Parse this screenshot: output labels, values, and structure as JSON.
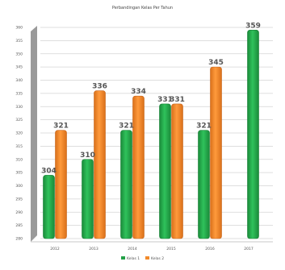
{
  "chart_data": {
    "type": "bar",
    "title": "Perbandingan Kelas Per Tahun",
    "categories": [
      "2012",
      "2013",
      "2014",
      "2015",
      "2016",
      "2017"
    ],
    "ylim": [
      280,
      360
    ],
    "yticks": [
      280,
      285,
      290,
      295,
      300,
      305,
      310,
      315,
      320,
      325,
      330,
      335,
      340,
      345,
      350,
      355,
      360
    ],
    "series": [
      {
        "name": "Kelas 1",
        "color": "#23a047",
        "values": [
          304,
          310,
          321,
          331,
          321,
          359
        ]
      },
      {
        "name": "Kelas 2",
        "color": "#f28a2a",
        "values": [
          321,
          336,
          334,
          331,
          345,
          null
        ]
      }
    ],
    "legend_position": "bottom",
    "grid": true
  }
}
